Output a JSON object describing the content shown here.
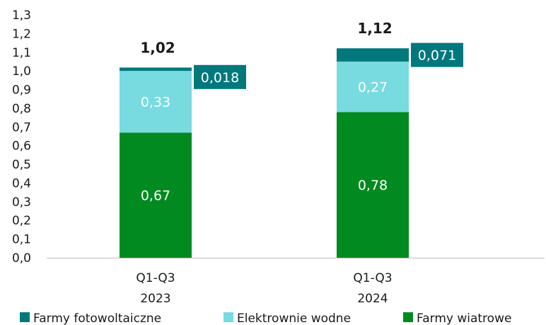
{
  "chart_data": {
    "type": "bar",
    "stacked": true,
    "categories": [
      [
        "Q1-Q3",
        "2023"
      ],
      [
        "Q1-Q3",
        "2024"
      ]
    ],
    "series": [
      {
        "name": "Farmy wiatrowe",
        "values": [
          0.67,
          0.78
        ],
        "labels": [
          "0,67",
          "0,78"
        ],
        "color": "#008a1f"
      },
      {
        "name": "Elektrownie wodne",
        "values": [
          0.33,
          0.27
        ],
        "labels": [
          "0,33",
          "0,27"
        ],
        "color": "#78dbe0"
      },
      {
        "name": "Farmy fotowoltaiczne",
        "values": [
          0.018,
          0.071
        ],
        "labels": [
          "0,018",
          "0,071"
        ],
        "color": "#00787c"
      }
    ],
    "totals": [
      "1,02",
      "1,12"
    ],
    "ylim": [
      0,
      1.3
    ],
    "yticks": [
      "0,0",
      "0,1",
      "0,2",
      "0,3",
      "0,4",
      "0,5",
      "0,6",
      "0,7",
      "0,8",
      "0,9",
      "1,0",
      "1,1",
      "1,2",
      "1,3"
    ],
    "legend": {
      "position": "bottom",
      "order": [
        "Farmy fotowoltaiczne",
        "Elektrownie wodne",
        "Farmy wiatrowe"
      ]
    },
    "grid": false
  }
}
